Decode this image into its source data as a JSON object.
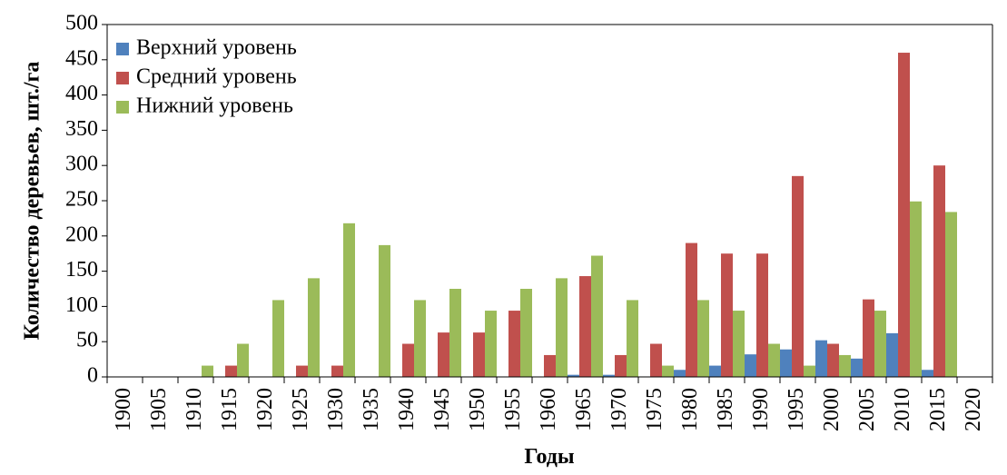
{
  "chart_data": {
    "type": "bar",
    "x_label": "Годы",
    "y_label": "Количество деревьев, шт./га",
    "categories": [
      "1900",
      "1905",
      "1910",
      "1915",
      "1920",
      "1925",
      "1930",
      "1935",
      "1940",
      "1945",
      "1950",
      "1955",
      "1960",
      "1965",
      "1970",
      "1975",
      "1980",
      "1985",
      "1990",
      "1995",
      "2000",
      "2005",
      "2010",
      "2015",
      "2020"
    ],
    "series": [
      {
        "name": "Верхний уровень",
        "color": "#4f81bd",
        "values": [
          0,
          0,
          0,
          0,
          0,
          0,
          0,
          0,
          0,
          0,
          0,
          0,
          0,
          3,
          3,
          0,
          10,
          16,
          32,
          39,
          52,
          26,
          62,
          10,
          0
        ]
      },
      {
        "name": "Средний уровень",
        "color": "#c0504d",
        "values": [
          0,
          0,
          0,
          16,
          0,
          16,
          16,
          0,
          47,
          63,
          63,
          94,
          31,
          143,
          31,
          47,
          190,
          175,
          175,
          285,
          47,
          110,
          460,
          300,
          0
        ]
      },
      {
        "name": "Нижний уровень",
        "color": "#9bbb59",
        "values": [
          0,
          0,
          16,
          47,
          109,
          140,
          218,
          187,
          109,
          125,
          94,
          125,
          140,
          172,
          109,
          16,
          109,
          94,
          47,
          16,
          31,
          94,
          249,
          234,
          0
        ]
      }
    ],
    "ylim": [
      0,
      500
    ],
    "yticks": [
      0,
      50,
      100,
      150,
      200,
      250,
      300,
      350,
      400,
      450,
      500
    ],
    "legend": "upper-left"
  }
}
